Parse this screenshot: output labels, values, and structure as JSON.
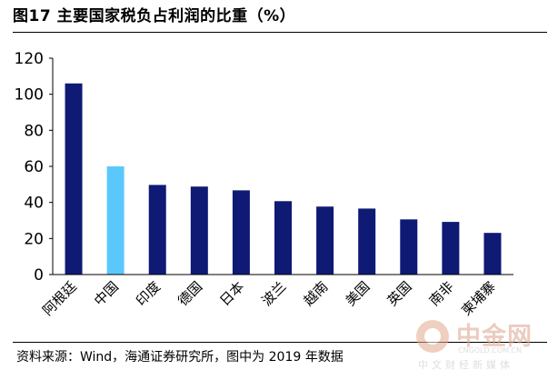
{
  "title": "图17 主要国家税负占利润的比重（%）",
  "source": "资料来源：Wind，海通证券研究所，图中为 2019 年数据",
  "watermark": {
    "name": "中金网",
    "url": "CNGOLD.COM.CN",
    "tagline": "中文财经新媒体",
    "color": "#dca48a"
  },
  "chart_data": {
    "type": "bar",
    "categories": [
      "阿根廷",
      "中国",
      "印度",
      "德国",
      "日本",
      "波兰",
      "越南",
      "美国",
      "英国",
      "南非",
      "柬埔寨"
    ],
    "values": [
      106,
      60,
      49.7,
      48.8,
      46.7,
      40.7,
      37.7,
      36.6,
      30.6,
      29.2,
      23.1
    ],
    "bar_colors": [
      "#0f1a75",
      "#5bc8fb",
      "#0f1a75",
      "#0f1a75",
      "#0f1a75",
      "#0f1a75",
      "#0f1a75",
      "#0f1a75",
      "#0f1a75",
      "#0f1a75",
      "#0f1a75"
    ],
    "yticks": [
      0,
      20,
      40,
      60,
      80,
      100,
      120
    ],
    "ylim": [
      0,
      120
    ],
    "grid": false,
    "legend": "none"
  }
}
